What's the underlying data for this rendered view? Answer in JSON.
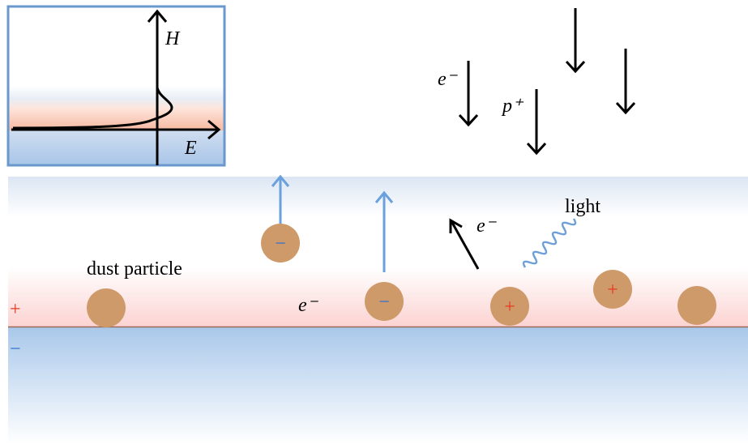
{
  "inset": {
    "y_axis_label": "H",
    "x_axis_label": "E"
  },
  "labels": {
    "electron_1": "e⁻",
    "proton": "p⁺",
    "light": "light",
    "electron_2": "e⁻",
    "electron_3": "e⁻",
    "dust_particle": "dust particle",
    "surface_plus": "+",
    "surface_minus": "−"
  },
  "particles": [
    {
      "charge": ""
    },
    {
      "charge": "−"
    },
    {
      "charge": "−"
    },
    {
      "charge": "+"
    },
    {
      "charge": "+"
    },
    {
      "charge": ""
    }
  ]
}
